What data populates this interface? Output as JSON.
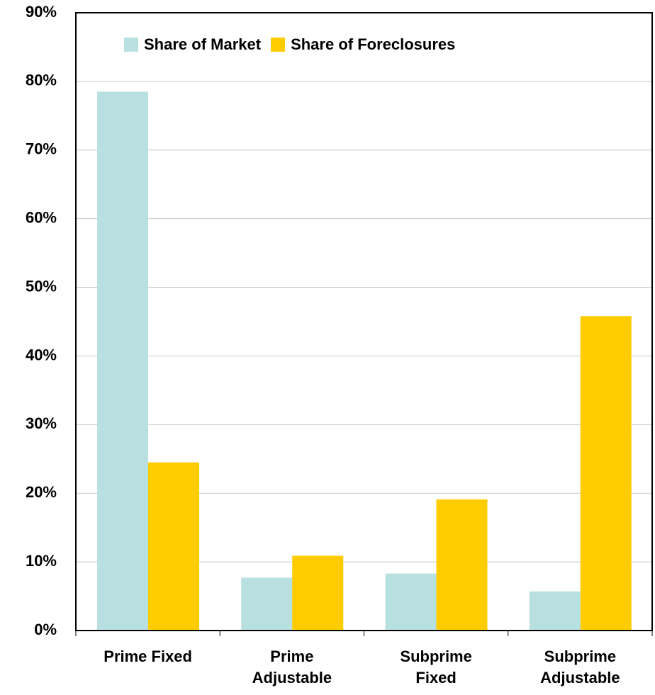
{
  "chart_data": {
    "type": "bar",
    "categories": [
      "Prime Fixed",
      "Prime\nAdjustable",
      "Subprime\nFixed",
      "Subprime\nAdjustable"
    ],
    "series": [
      {
        "name": "Share of Market",
        "color": "#b9e0e0",
        "values": [
          78.5,
          7.7,
          8.3,
          5.7
        ]
      },
      {
        "name": "Share of Foreclosures",
        "color": "#ffcc00",
        "values": [
          24.5,
          10.9,
          19.1,
          45.8
        ]
      }
    ],
    "ylim": [
      0,
      90
    ],
    "yticks": [
      {
        "value": 0,
        "label": "0%"
      },
      {
        "value": 10,
        "label": "10%"
      },
      {
        "value": 20,
        "label": "20%"
      },
      {
        "value": 30,
        "label": "30%"
      },
      {
        "value": 40,
        "label": "40%"
      },
      {
        "value": 50,
        "label": "50%"
      },
      {
        "value": 60,
        "label": "60%"
      },
      {
        "value": 70,
        "label": "70%"
      },
      {
        "value": 80,
        "label": "80%"
      },
      {
        "value": 90,
        "label": "90%"
      }
    ],
    "grid": true,
    "legend": "top"
  }
}
